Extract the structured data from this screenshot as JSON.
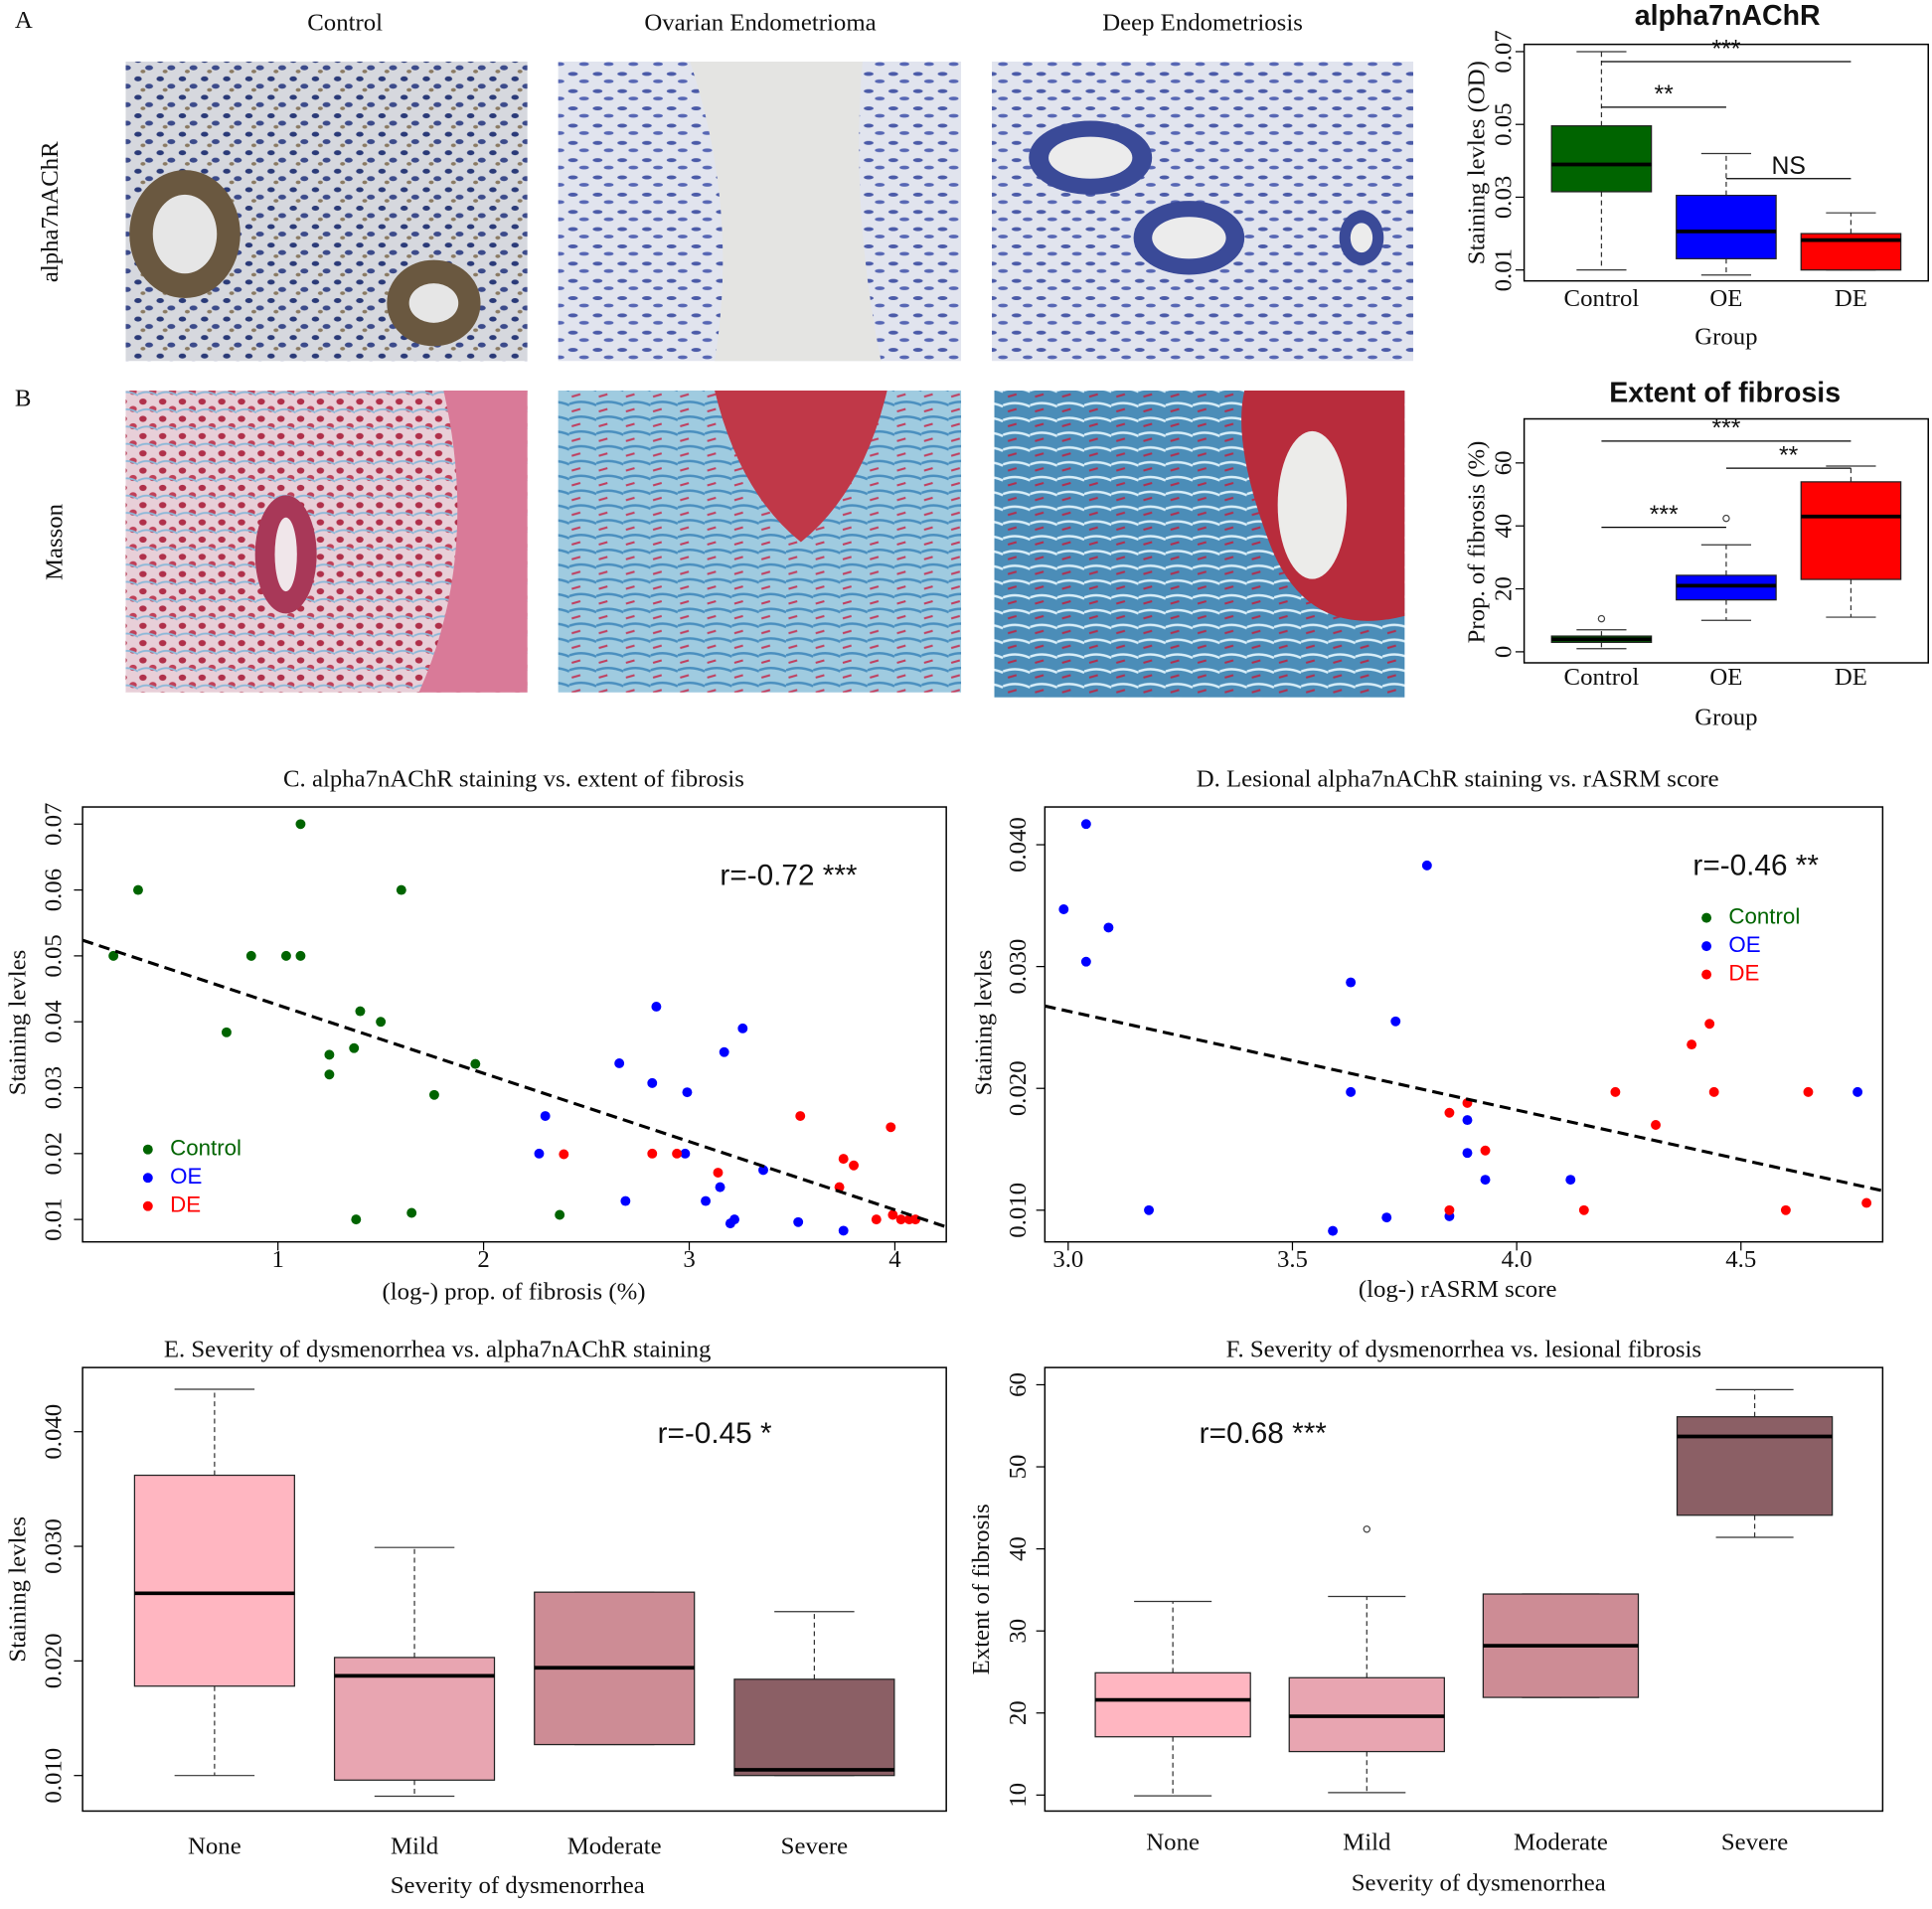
{
  "image_panels": {
    "panel_letters": [
      "A",
      "B"
    ],
    "columns": [
      "Control",
      "Ovarian Endometrioma",
      "Deep Endometriosis"
    ],
    "rows": [
      "alpha7nAChR",
      "Masson"
    ]
  },
  "chart_data": [
    {
      "type": "box",
      "title": "alpha7nAChR",
      "x_label": "Group",
      "y_label": "Staining levles (OD)",
      "categories": [
        "Control",
        "OE",
        "DE"
      ],
      "colors": [
        "#006400",
        "#0000ff",
        "#ff0000"
      ],
      "boxes": [
        {
          "min": 0.01,
          "q1": 0.0315,
          "median": 0.039,
          "q3": 0.0496,
          "max": 0.07,
          "outliers": []
        },
        {
          "min": 0.0086,
          "q1": 0.0131,
          "median": 0.0206,
          "q3": 0.0305,
          "max": 0.042,
          "outliers": []
        },
        {
          "min": 0.01,
          "q1": 0.01,
          "median": 0.0182,
          "q3": 0.02,
          "max": 0.0257,
          "outliers": []
        }
      ],
      "brackets": [
        {
          "groups": [
            0,
            2
          ],
          "label": "***"
        },
        {
          "groups": [
            0,
            1
          ],
          "label": "**"
        },
        {
          "groups": [
            1,
            2
          ],
          "label": "NS"
        }
      ],
      "ylim": [
        0.007,
        0.072
      ],
      "yticks": [
        0.01,
        0.03,
        0.05,
        0.07
      ]
    },
    {
      "type": "box",
      "title": "Extent of fibrosis",
      "x_label": "Group",
      "y_label": "Prop. of fibrosis (%)",
      "categories": [
        "Control",
        "OE",
        "DE"
      ],
      "colors": [
        "#006400",
        "#0000ff",
        "#ff0000"
      ],
      "boxes": [
        {
          "min": 1,
          "q1": 3,
          "median": 4,
          "q3": 5,
          "max": 7,
          "outliers": [
            10.5
          ]
        },
        {
          "min": 10,
          "q1": 16.5,
          "median": 21,
          "q3": 24.3,
          "max": 34,
          "outliers": [
            42.4
          ]
        },
        {
          "min": 11,
          "q1": 23,
          "median": 43,
          "q3": 54,
          "max": 59,
          "outliers": []
        }
      ],
      "brackets": [
        {
          "groups": [
            0,
            2
          ],
          "label": "***"
        },
        {
          "groups": [
            1,
            2
          ],
          "label": "**"
        },
        {
          "groups": [
            0,
            1
          ],
          "label": "***"
        }
      ],
      "ylim": [
        -3.5,
        74
      ],
      "yticks": [
        0,
        20,
        40,
        60
      ]
    },
    {
      "type": "scatter",
      "title": "C. alpha7nAChR staining vs. extent of fibrosis",
      "x_label": "(log-) prop. of fibrosis (%)",
      "y_label": "Staining levles",
      "annotation": "r=-0.72 ***",
      "legend": "bottom-left",
      "series": [
        {
          "name": "Control",
          "color": "#006400",
          "x": [
            0.2,
            0.32,
            0.75,
            0.87,
            1.04,
            1.11,
            1.11,
            1.25,
            1.25,
            1.37,
            1.4,
            1.5,
            1.6,
            1.38,
            1.65,
            1.76,
            1.96,
            2.37
          ],
          "y": [
            0.05,
            0.06,
            0.0384,
            0.05,
            0.05,
            0.05,
            0.07,
            0.035,
            0.032,
            0.036,
            0.0416,
            0.04,
            0.06,
            0.01,
            0.011,
            0.0289,
            0.0336,
            0.0107
          ]
        },
        {
          "name": "OE",
          "color": "#0000ff",
          "x": [
            2.3,
            2.27,
            2.66,
            2.69,
            2.82,
            2.84,
            2.99,
            2.98,
            3.08,
            3.15,
            3.17,
            3.26,
            3.2,
            3.22,
            3.36,
            3.53,
            3.75
          ],
          "y": [
            0.0257,
            0.02,
            0.0337,
            0.0128,
            0.0307,
            0.0423,
            0.0293,
            0.02,
            0.0128,
            0.0149,
            0.0354,
            0.039,
            0.0094,
            0.01,
            0.0175,
            0.0096,
            0.0083
          ]
        },
        {
          "name": "DE",
          "color": "#ff0000",
          "x": [
            2.39,
            2.82,
            2.94,
            3.14,
            3.54,
            3.73,
            3.75,
            3.8,
            3.98,
            3.91,
            3.99,
            4.03,
            4.07,
            4.1
          ],
          "y": [
            0.0199,
            0.02,
            0.02,
            0.0171,
            0.0257,
            0.0149,
            0.0192,
            0.0182,
            0.024,
            0.01,
            0.0107,
            0.01,
            0.01,
            0.01
          ]
        }
      ],
      "fit": {
        "intercept": 0.0529,
        "slope": -0.01036
      },
      "xlim": [
        0.05,
        4.25
      ],
      "xticks": [
        1,
        2,
        3,
        4
      ],
      "ylim": [
        0.0066,
        0.0726
      ],
      "yticks": [
        0.01,
        0.02,
        0.03,
        0.04,
        0.05,
        0.06,
        0.07
      ]
    },
    {
      "type": "scatter",
      "title": "D. Lesional alpha7nAChR staining vs. rASRM score",
      "x_label": "(log-) rASRM score",
      "y_label": "Staining levles",
      "annotation": "r=-0.46 **",
      "legend": "top-right",
      "series": [
        {
          "name": "Control",
          "color": "#006400",
          "x": [],
          "y": []
        },
        {
          "name": "OE",
          "color": "#0000ff",
          "x": [
            2.99,
            3.04,
            3.04,
            3.09,
            3.18,
            3.63,
            3.63,
            3.73,
            3.71,
            3.59,
            3.8,
            3.85,
            3.89,
            3.89,
            3.93,
            4.12,
            4.76
          ],
          "y": [
            0.0347,
            0.0417,
            0.0304,
            0.0332,
            0.01,
            0.0287,
            0.0197,
            0.0255,
            0.0094,
            0.0083,
            0.0383,
            0.0095,
            0.0174,
            0.0147,
            0.0125,
            0.0125,
            0.0197
          ]
        },
        {
          "name": "DE",
          "color": "#ff0000",
          "x": [
            3.85,
            3.85,
            3.89,
            3.93,
            4.15,
            4.22,
            4.31,
            4.39,
            4.43,
            4.44,
            4.6,
            4.65,
            4.78
          ],
          "y": [
            0.018,
            0.01,
            0.0188,
            0.0149,
            0.01,
            0.0197,
            0.017,
            0.0236,
            0.0253,
            0.0197,
            0.01,
            0.0197,
            0.0106
          ]
        }
      ],
      "fit": {
        "intercept": 0.0507,
        "slope": -0.00812
      },
      "xlim": [
        2.948,
        4.816
      ],
      "xticks": [
        {
          "value": 3,
          "label": "3.0"
        },
        3.5,
        {
          "value": 4,
          "label": "4.0"
        },
        4.5
      ],
      "ylim": [
        0.0074,
        0.0431
      ],
      "yticks": [
        {
          "value": 0.01,
          "label": "0.010"
        },
        {
          "value": 0.02,
          "label": "0.020"
        },
        {
          "value": 0.03,
          "label": "0.030"
        },
        {
          "value": 0.04,
          "label": "0.040"
        }
      ]
    },
    {
      "type": "box",
      "title": "E. Severity of dysmenorrhea vs. alpha7nAChR staining",
      "x_label": "Severity of dysmenorrhea",
      "y_label": "Staining levles",
      "annotation": "r=-0.45 *",
      "categories": [
        "None",
        "Mild",
        "Moderate",
        "Severe"
      ],
      "colors": [
        "#ffb6c1",
        "#e8a5b1",
        "#cd8c95",
        "#8b5f65"
      ],
      "boxes": [
        {
          "min": 0.01,
          "q1": 0.0178,
          "median": 0.0259,
          "q3": 0.0362,
          "max": 0.0437,
          "outliers": []
        },
        {
          "min": 0.0082,
          "q1": 0.0096,
          "median": 0.0187,
          "q3": 0.0203,
          "max": 0.0299,
          "outliers": []
        },
        {
          "min": 0.0127,
          "q1": 0.0127,
          "median": 0.0194,
          "q3": 0.026,
          "max": 0.026,
          "outliers": []
        },
        {
          "min": 0.01,
          "q1": 0.01,
          "median": 0.0105,
          "q3": 0.0184,
          "max": 0.0243,
          "outliers": []
        }
      ],
      "ylim": [
        0.0069,
        0.0456
      ],
      "yticks": [
        {
          "value": 0.01,
          "label": "0.010"
        },
        {
          "value": 0.02,
          "label": "0.020"
        },
        {
          "value": 0.03,
          "label": "0.030"
        },
        {
          "value": 0.04,
          "label": "0.040"
        }
      ]
    },
    {
      "type": "box",
      "title": "F. Severity of dysmenorrhea vs. lesional fibrosis",
      "x_label": "Severity of dysmenorrhea",
      "y_label": "Extent of fibrosis",
      "annotation": "r=0.68 ***",
      "categories": [
        "None",
        "Mild",
        "Moderate",
        "Severe"
      ],
      "colors": [
        "#ffb6c1",
        "#e8a5b1",
        "#cd8c95",
        "#8b5f65"
      ],
      "boxes": [
        {
          "min": 9.9,
          "q1": 17.1,
          "median": 21.6,
          "q3": 24.9,
          "max": 33.6,
          "outliers": []
        },
        {
          "min": 10.3,
          "q1": 15.3,
          "median": 19.6,
          "q3": 24.3,
          "max": 34.2,
          "outliers": [
            42.4
          ]
        },
        {
          "min": 21.9,
          "q1": 21.9,
          "median": 28.2,
          "q3": 34.5,
          "max": 34.5,
          "outliers": []
        },
        {
          "min": 41.4,
          "q1": 44.1,
          "median": 53.7,
          "q3": 56.1,
          "max": 59.4,
          "outliers": []
        }
      ],
      "ylim": [
        8.05,
        62.1
      ],
      "yticks": [
        10,
        20,
        30,
        40,
        50,
        60
      ]
    }
  ]
}
